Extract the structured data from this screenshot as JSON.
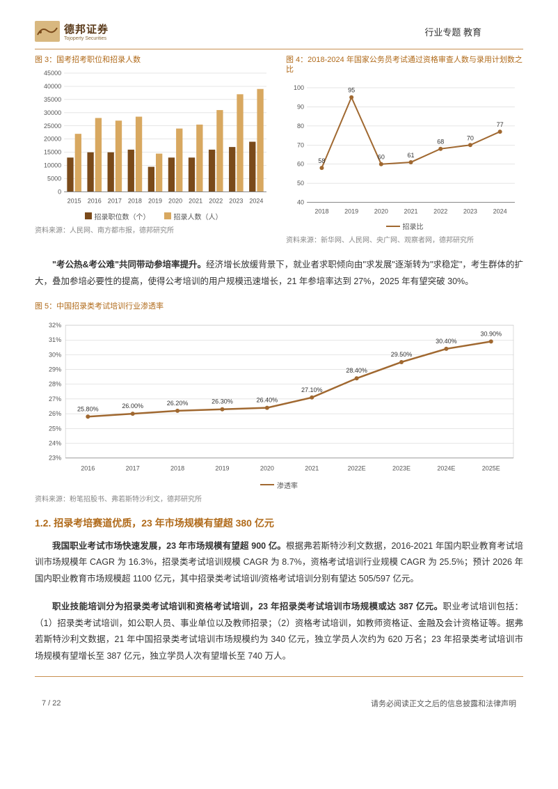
{
  "header": {
    "logo_cn": "德邦证券",
    "logo_en": "Tojoperty Securities",
    "report_label": "行业专题 教育"
  },
  "fig3": {
    "title": "图 3：国考招考职位和招录人数",
    "type": "bar",
    "categories": [
      "2015",
      "2016",
      "2017",
      "2018",
      "2019",
      "2020",
      "2021",
      "2022",
      "2023",
      "2024"
    ],
    "series": [
      {
        "name": "招录职位数（个）",
        "color": "#7a4a1a",
        "values": [
          13000,
          15000,
          15000,
          16000,
          9500,
          13000,
          13000,
          16000,
          17000,
          19000
        ]
      },
      {
        "name": "招录人数（人）",
        "color": "#d8a860",
        "values": [
          22000,
          28000,
          27000,
          28500,
          14500,
          24000,
          25500,
          31000,
          37000,
          39000
        ]
      }
    ],
    "ylim": [
      0,
      45000
    ],
    "ytick_step": 5000,
    "background": "#ffffff",
    "grid_color": "#cccccc",
    "label_fontsize": 9,
    "source": "资料来源：人民网、南方都市报，德邦研究所"
  },
  "fig4": {
    "title": "图 4：2018-2024 年国家公务员考试通过资格审查人数与录用计划数之比",
    "type": "line",
    "categories": [
      "2018",
      "2019",
      "2020",
      "2021",
      "2022",
      "2023",
      "2024"
    ],
    "values": [
      58,
      95,
      60,
      61,
      68,
      70,
      77
    ],
    "line_color": "#a06830",
    "marker_color": "#a06830",
    "ylim": [
      40,
      100
    ],
    "ytick_step": 10,
    "grid_color": "#cccccc",
    "label_fontsize": 9,
    "legend_label": "招录比",
    "source": "资料来源：新华网、人民网、央广网、观察者网，德邦研究所"
  },
  "para1_bold": "\"考公热&考公难\"共同带动参培率提升。",
  "para1_rest": "经济增长放缓背景下，就业者求职倾向由\"求发展\"逐渐转为\"求稳定\"，考生群体的扩大，叠加参培必要性的提高，使得公考培训的用户规模迅速增长，21 年参培率达到 27%，2025 年有望突破 30%。",
  "fig5": {
    "title": "图 5：中国招录类考试培训行业渗透率",
    "type": "line",
    "categories": [
      "2016",
      "2017",
      "2018",
      "2019",
      "2020",
      "2021",
      "2022E",
      "2023E",
      "2024E",
      "2025E"
    ],
    "values": [
      25.8,
      26.0,
      26.2,
      26.3,
      26.4,
      27.1,
      28.4,
      29.5,
      30.4,
      30.9
    ],
    "labels": [
      "25.80%",
      "26.00%",
      "26.20%",
      "26.30%",
      "26.40%",
      "27.10%",
      "28.40%",
      "29.50%",
      "30.40%",
      "30.90%"
    ],
    "line_color": "#a06830",
    "marker_color": "#a06830",
    "ylim": [
      23,
      32
    ],
    "ytick_step": 1,
    "grid_color": "#cccccc",
    "label_fontsize": 9,
    "legend_label": "渗透率",
    "source": "资料来源：粉笔招股书、弗若斯特沙利文，德邦研究所"
  },
  "section_heading": "1.2. 招录考培赛道优质，23 年市场规模有望超 380 亿元",
  "para2_bold": "我国职业考试市场快速发展，23 年市场规模有望超 900 亿。",
  "para2_rest": "根据弗若斯特沙利文数据，2016-2021 年国内职业教育考试培训市场规模年 CAGR 为 16.3%，招录类考试培训规模 CAGR 为 8.7%，资格考试培训行业规模 CAGR 为 25.5%；预计 2026 年国内职业教育市场规模超 1100 亿元，其中招录类考试培训/资格考试培训分别有望达 505/597 亿元。",
  "para3_bold": "职业技能培训分为招录类考试培训和资格考试培训，23 年招录类考试培训市场规模或达 387 亿元。",
  "para3_rest": "职业考试培训包括：（1）招录类考试培训，如公职人员、事业单位以及教师招录；（2）资格考试培训，如教师资格证、金融及会计资格证等。据弗若斯特沙利文数据，21 年中国招录类考试培训市场规模约为 340 亿元，独立学员人次约为 620 万名；23 年招录类考试培训市场规模有望增长至 387 亿元，独立学员人次有望增长至 740 万人。",
  "footer": {
    "page": "7 / 22",
    "disclaimer": "请务必阅读正文之后的信息披露和法律声明"
  }
}
